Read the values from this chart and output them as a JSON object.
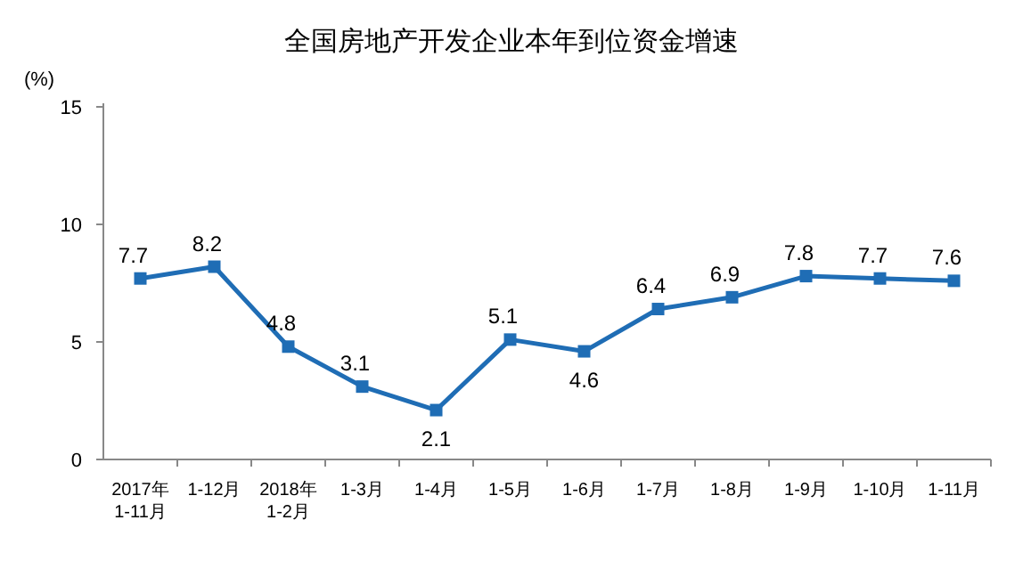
{
  "chart_data": {
    "type": "line",
    "title": "全国房地产开发企业本年到位资金增速",
    "ylabel": "(%)",
    "categories": [
      "2017年\n1-11月",
      "1-12月",
      "2018年\n1-2月",
      "1-3月",
      "1-4月",
      "1-5月",
      "1-6月",
      "1-7月",
      "1-8月",
      "1-9月",
      "1-10月",
      "1-11月"
    ],
    "series": [
      {
        "color": "#1f6db5",
        "values": [
          7.7,
          8.2,
          4.8,
          3.1,
          2.1,
          5.1,
          4.6,
          6.4,
          6.9,
          7.8,
          7.7,
          7.6
        ]
      }
    ],
    "ylim": [
      0,
      15
    ],
    "yticks": [
      0,
      5,
      10,
      15
    ],
    "marker": "square",
    "data_labels": true,
    "grid": false
  }
}
